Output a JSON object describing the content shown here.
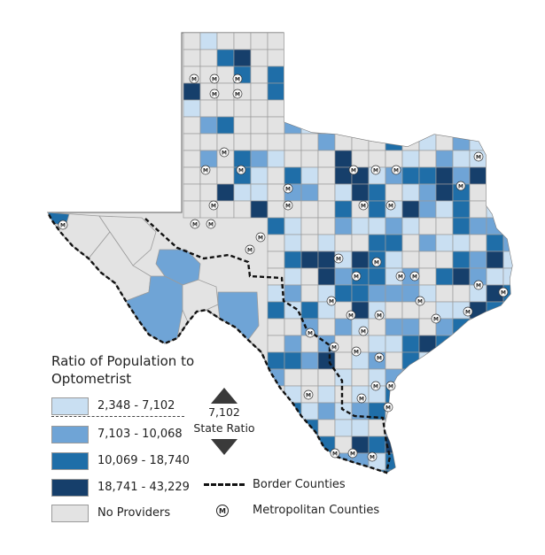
{
  "legend": {
    "title_line1": "Ratio of Population to",
    "title_line2": "Optometrist",
    "classes": [
      {
        "label": "2,348 - 7,102",
        "color": "#c9dff2"
      },
      {
        "label": "7,103 - 10,068",
        "color": "#6fa4d6"
      },
      {
        "label": "10,069 - 18,740",
        "color": "#1f6ea8"
      },
      {
        "label": "18,741 - 43,229",
        "color": "#163f6b"
      },
      {
        "label": "No Providers",
        "color": "#e3e3e3"
      }
    ],
    "state_ratio_value": "7,102",
    "state_ratio_label": "State Ratio",
    "border_counties_label": "Border Counties",
    "metro_counties_label": "Metropolitan Counties",
    "metro_symbol": "M"
  },
  "colors": {
    "county_border": "#9b9b9b",
    "state_outline": "#7a7a7a",
    "border_counties_line": "#111111",
    "arrow": "#3a3a3a"
  }
}
